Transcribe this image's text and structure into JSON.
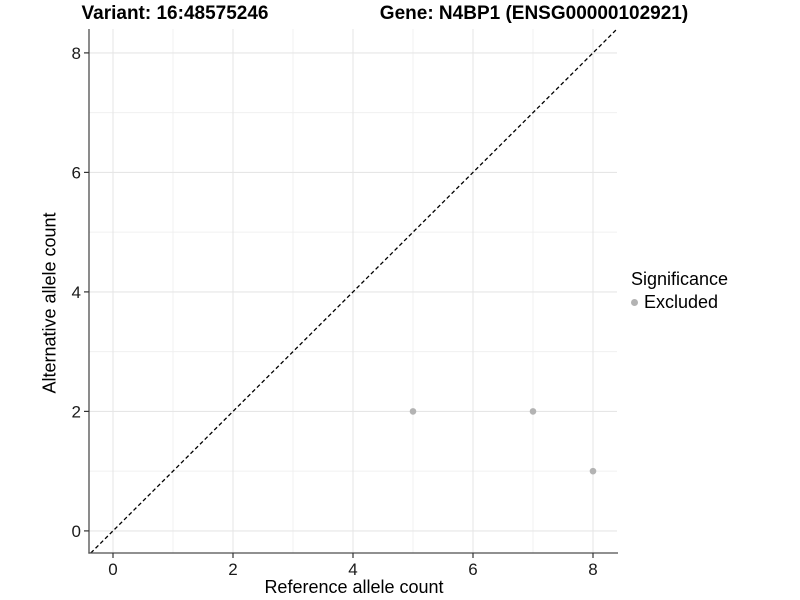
{
  "titles": {
    "variant": "Variant: 16:48575246",
    "gene": "Gene: N4BP1 (ENSG00000102921)"
  },
  "legend": {
    "title": "Significance",
    "items": [
      {
        "label": "Excluded",
        "color": "#b3b3b3"
      }
    ]
  },
  "chart_data": {
    "type": "scatter",
    "title": "Variant: 16:48575246    Gene: N4BP1 (ENSG00000102921)",
    "xlabel": "Reference allele count",
    "ylabel": "Alternative allele count",
    "x_axis": {
      "range": [
        -0.4,
        8.4
      ],
      "major_ticks": [
        0,
        2,
        4,
        6,
        8
      ],
      "minor_gridlines": [
        1,
        3,
        5,
        7
      ]
    },
    "y_axis": {
      "range": [
        -0.37,
        8.4
      ],
      "major_ticks": [
        0,
        2,
        4,
        6,
        8
      ],
      "minor_gridlines": [
        1,
        3,
        5,
        7
      ]
    },
    "series": [
      {
        "name": "Excluded",
        "color": "#b3b3b3",
        "points": [
          {
            "x": 5,
            "y": 2
          },
          {
            "x": 7,
            "y": 2
          },
          {
            "x": 8,
            "y": 1
          }
        ]
      }
    ],
    "reference_line": {
      "slope": 1,
      "intercept": 0,
      "style": "dashed",
      "color": "#000000"
    },
    "grid": true,
    "legend_position": "right",
    "colors": {
      "background": "#ffffff",
      "grid_major": "#e6e6e6",
      "grid_minor": "#f0f0f0",
      "axis_line": "#4d4d4d",
      "tick_mark": "#333333",
      "tick_text": "#1a1a1a",
      "point": "#b3b3b3"
    }
  }
}
